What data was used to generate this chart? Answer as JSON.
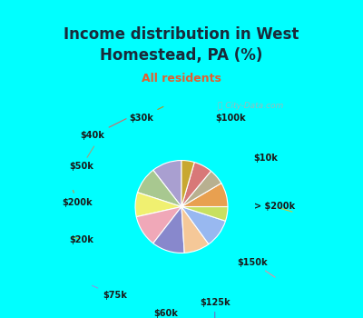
{
  "title": "Income distribution in West\nHomestead, PA (%)",
  "subtitle": "All residents",
  "watermark": "ⓘ City-Data.com",
  "labels": [
    "$100k",
    "$10k",
    "> $200k",
    "$150k",
    "$125k",
    "$60k",
    "$75k",
    "$20k",
    "$200k",
    "$50k",
    "$40k",
    "$30k"
  ],
  "values": [
    10.5,
    9.5,
    8.5,
    11.0,
    11.5,
    9.0,
    10.0,
    5.0,
    8.5,
    5.5,
    6.5,
    4.5
  ],
  "colors": [
    "#a99fd0",
    "#a8c890",
    "#f0f070",
    "#f0a8b8",
    "#8888cc",
    "#f5c898",
    "#98b8f0",
    "#c8e060",
    "#e8a050",
    "#b8b090",
    "#d87878",
    "#c8a830"
  ],
  "line_colors": [
    "#9090c0",
    "#90b890",
    "#c8c840",
    "#e090a0",
    "#7070c0",
    "#e0a878",
    "#8898e0",
    "#a8c840",
    "#d09040",
    "#a0a080",
    "#d06868",
    "#b89020"
  ],
  "bg_top": "#00ffff",
  "bg_chart_color": "#d8f0e0",
  "title_color": "#1a2a3a",
  "subtitle_color": "#e06030",
  "label_color": "#1a1a1a",
  "startangle": 90,
  "figsize": [
    4.0,
    3.5
  ],
  "dpi": 100
}
